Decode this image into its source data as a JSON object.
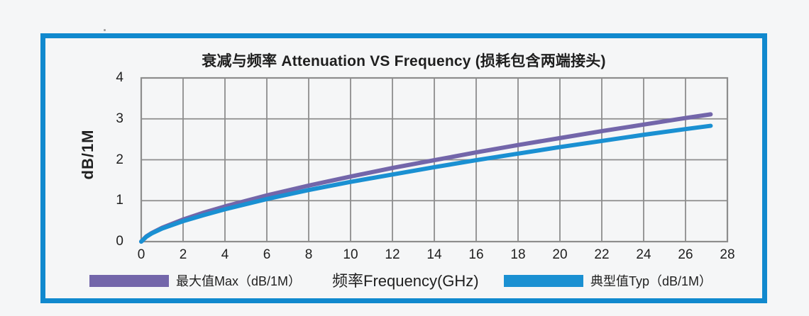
{
  "page": {
    "background": "#f5f6f7"
  },
  "colors": {
    "frame_blue": "#1189ce",
    "grid_gray": "#8d8d8d",
    "text_dark": "#1f1f1f",
    "max_purple": "#7366aa",
    "typ_blue": "#1a90d2"
  },
  "chart_data": {
    "type": "line",
    "title": "衰减与频率 Attenuation VS Frequency (损耗包含两端接头)",
    "xlabel": "频率Frequency(GHz)",
    "ylabel": "dB/1M",
    "xlim": [
      0,
      28
    ],
    "ylim": [
      0,
      4
    ],
    "x_ticks": [
      0,
      2,
      4,
      6,
      8,
      10,
      12,
      14,
      16,
      18,
      20,
      22,
      24,
      26,
      28
    ],
    "y_ticks": [
      0,
      1,
      2,
      3,
      4
    ],
    "grid": true,
    "legend_position": "bottom",
    "series": [
      {
        "id": "max",
        "name": "最大值Max（dB/1M）",
        "color": "#7366aa",
        "x": [
          0,
          0.25,
          0.5,
          1,
          2,
          3,
          4,
          6,
          8,
          10,
          12,
          14,
          16,
          18,
          20,
          22,
          24,
          26,
          27.2
        ],
        "y": [
          0,
          0.13,
          0.21,
          0.34,
          0.54,
          0.71,
          0.86,
          1.13,
          1.37,
          1.59,
          1.8,
          1.99,
          2.18,
          2.36,
          2.53,
          2.7,
          2.86,
          3.02,
          3.11
        ]
      },
      {
        "id": "typ",
        "name": "典型值Typ（dB/1M）",
        "color": "#1a90d2",
        "x": [
          0,
          0.25,
          0.5,
          1,
          2,
          3,
          4,
          6,
          8,
          10,
          12,
          14,
          16,
          18,
          20,
          22,
          24,
          26,
          27.2
        ],
        "y": [
          0,
          0.12,
          0.2,
          0.32,
          0.5,
          0.65,
          0.79,
          1.04,
          1.26,
          1.46,
          1.64,
          1.82,
          1.99,
          2.15,
          2.31,
          2.46,
          2.61,
          2.75,
          2.83
        ]
      }
    ]
  }
}
